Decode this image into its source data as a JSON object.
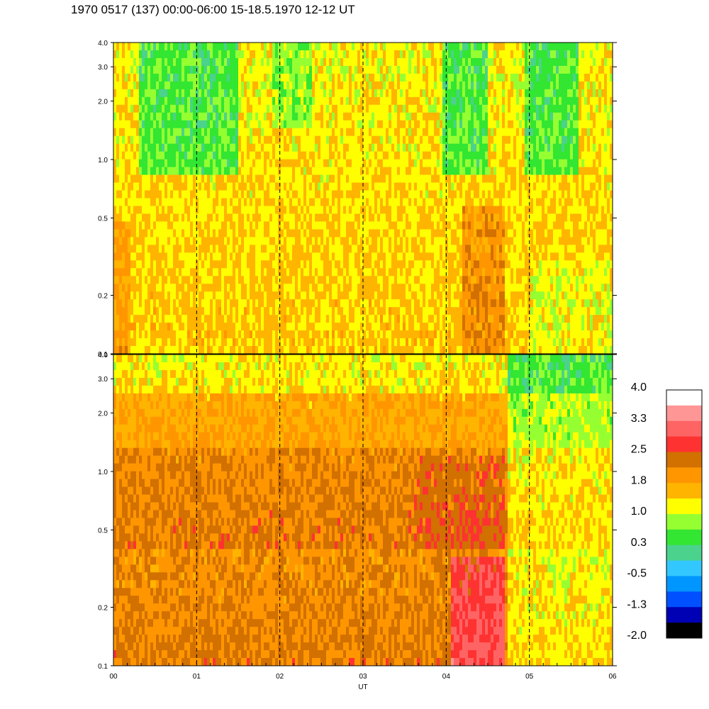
{
  "title": "1970 0517 (137) 00:00-06:00 15-18.5.1970  12-12 UT",
  "chart_data": {
    "type": "heatmap",
    "xlabel": "UT",
    "x_ticks": [
      "00",
      "01",
      "02",
      "03",
      "04",
      "05",
      "06"
    ],
    "xlim": [
      0,
      6
    ],
    "vertical_dashed_lines": [
      1,
      2,
      3,
      4,
      5
    ],
    "panels": [
      {
        "name": "upper",
        "yscale": "log",
        "ylim": [
          0.1,
          4.0
        ],
        "y_ticks": [
          0.1,
          0.2,
          0.5,
          1.0,
          2.0,
          3.0,
          4.0
        ],
        "y_tick_labels": [
          "0.1",
          "0.2",
          "0.5",
          "1.0",
          "2.0",
          "3.0",
          "4.0"
        ],
        "dominant_levels": "green/cyan, with blue patches near 1-3 around 00:20-01:30, 04:00-04:30 and 05:00-05:40; yellow near 04:20-04:40 below 0.5"
      },
      {
        "name": "lower",
        "yscale": "log",
        "ylim": [
          0.1,
          4.0
        ],
        "y_ticks": [
          0.1,
          0.2,
          0.5,
          1.0,
          2.0,
          3.0,
          4.0
        ],
        "y_tick_labels": [
          "0.1",
          "0.2",
          "0.5",
          "1.0",
          "2.0",
          "3.0",
          "4.0"
        ],
        "dominant_levels": "orange/yellow, darker orange-brown near 0.5-1.0, red near 04:10-04:45 below 0.3; yellow/green after 04:45"
      }
    ],
    "colorbar": {
      "labels": [
        "4.0",
        "3.3",
        "2.5",
        "1.8",
        "1.0",
        "0.3",
        "-0.5",
        "-1.3",
        "-2.0"
      ],
      "colors_top_to_bottom": [
        "#ffffff",
        "#ff9696",
        "#ff6464",
        "#ff3232",
        "#d27000",
        "#ff9600",
        "#ffb400",
        "#ffff00",
        "#96ff32",
        "#32e632",
        "#4bd28c",
        "#32c8ff",
        "#0096ff",
        "#0050ff",
        "#0000b4",
        "#000000"
      ]
    }
  }
}
